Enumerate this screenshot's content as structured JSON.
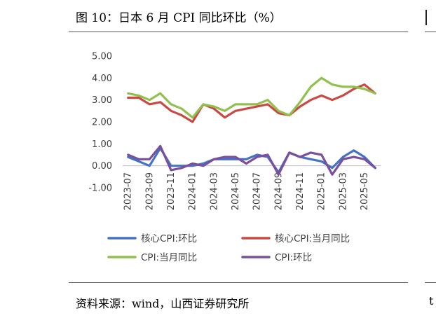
{
  "title": "图 10：日本 6 月 CPI 同比环比（%）",
  "source": "资料来源：wind，山西证券研究所",
  "right_edge_fragment": "t",
  "chart_data": {
    "type": "line",
    "categories": [
      "2023-07",
      "2023-08",
      "2023-09",
      "2023-10",
      "2023-11",
      "2023-12",
      "2024-01",
      "2024-02",
      "2024-03",
      "2024-04",
      "2024-05",
      "2024-06",
      "2024-07",
      "2024-08",
      "2024-09",
      "2024-10",
      "2024-11",
      "2024-12",
      "2025-01",
      "2025-02",
      "2025-03",
      "2025-04",
      "2025-05",
      "2025-06"
    ],
    "x_tick_labels": [
      "2023-07",
      "2023-09",
      "2023-11",
      "2024-01",
      "2024-03",
      "2024-05",
      "2024-07",
      "2024-09",
      "2024-11",
      "2025-01",
      "2025-03",
      "2025-05"
    ],
    "y_tick_labels": [
      "5.00",
      "4.00",
      "3.00",
      "2.00",
      "1.00",
      "0.00",
      "-1.00"
    ],
    "ylim": [
      -1,
      5
    ],
    "grid": false,
    "legend_position": "bottom",
    "series": [
      {
        "name": "核心CPI:环比",
        "color": "#4472C4",
        "values": [
          0.4,
          0.2,
          0.0,
          0.8,
          0.0,
          0.0,
          0.0,
          0.1,
          0.3,
          0.3,
          0.3,
          0.3,
          0.5,
          0.4,
          -0.3,
          0.6,
          0.4,
          0.3,
          0.2,
          -0.1,
          0.4,
          0.7,
          0.4,
          -0.1
        ]
      },
      {
        "name": "核心CPI:当月同比",
        "color": "#C94A44",
        "values": [
          3.1,
          3.1,
          2.8,
          2.9,
          2.5,
          2.3,
          2.0,
          2.8,
          2.6,
          2.2,
          2.5,
          2.6,
          2.7,
          2.8,
          2.4,
          2.3,
          2.7,
          3.0,
          3.2,
          3.0,
          3.2,
          3.5,
          3.7,
          3.3
        ]
      },
      {
        "name": "CPI:当月同比",
        "color": "#92C04D",
        "values": [
          3.3,
          3.2,
          3.0,
          3.3,
          2.8,
          2.6,
          2.2,
          2.8,
          2.7,
          2.5,
          2.8,
          2.8,
          2.8,
          3.0,
          2.5,
          2.3,
          2.9,
          3.6,
          4.0,
          3.7,
          3.6,
          3.6,
          3.5,
          3.3
        ]
      },
      {
        "name": "CPI:环比",
        "color": "#7A4F9E",
        "values": [
          0.5,
          0.3,
          0.3,
          0.9,
          -0.2,
          -0.1,
          0.1,
          0.0,
          0.3,
          0.4,
          0.4,
          0.1,
          0.4,
          0.5,
          -0.4,
          0.6,
          0.4,
          0.6,
          0.5,
          -0.4,
          0.3,
          0.4,
          0.3,
          -0.1
        ]
      }
    ]
  }
}
